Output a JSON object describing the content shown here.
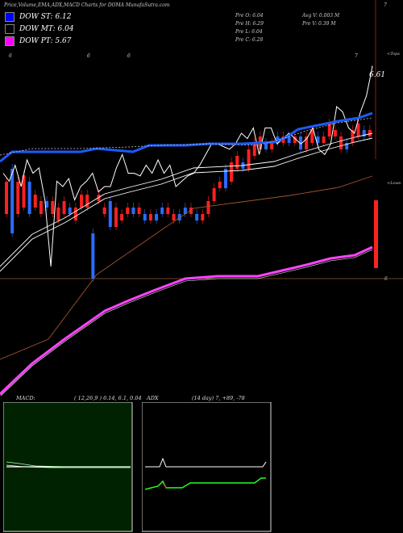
{
  "header": {
    "title": "Price,Volume,EMA,ADX,MACD Charts for DOMA MunafaSutra.com",
    "stats": [
      {
        "label": "Pre  O:",
        "value": "6.04"
      },
      {
        "label": "Pre  H:",
        "value": "6.29"
      },
      {
        "label": "Pre  L:",
        "value": "6.04"
      },
      {
        "label": "Pre  C:",
        "value": "6.28"
      }
    ],
    "avg_vol": {
      "label": "Avg V:",
      "value": "0.003 M"
    },
    "pre_vol": {
      "label": "Pre  V:",
      "value": "0.39 M"
    }
  },
  "legend": [
    {
      "label": "DOW ST:",
      "value": "6.12",
      "color": "#0000ff"
    },
    {
      "label": "DOW MT:",
      "value": "6.04",
      "color": "#000000"
    },
    {
      "label": "DOW PT:",
      "value": "5.67",
      "color": "#ff00ff"
    }
  ],
  "right_labels": {
    "top": "7",
    "tops": "<Tops",
    "lows": "<Lows",
    "mid": "6",
    "value_tag": "6.61"
  },
  "top_markers": [
    "6",
    "6",
    "6",
    "7"
  ],
  "colors": {
    "st_line": "#1a5cff",
    "pt_line": "#ff44ff",
    "mt_line": "#ffffff",
    "ema_brown": "#a0522d",
    "up_candle": "#ff2020",
    "down_candle": "#2a6cff",
    "macd_bg": "#002200"
  },
  "chart_data": [
    {
      "type": "line",
      "name": "price-panel",
      "candles": [
        {
          "o": 5.95,
          "c": 6.0
        },
        {
          "o": 6.02,
          "c": 5.92
        },
        {
          "o": 5.95,
          "c": 6.0
        },
        {
          "o": 5.96,
          "c": 6.01
        },
        {
          "o": 6.0,
          "c": 5.95
        },
        {
          "o": 5.96,
          "c": 5.98
        },
        {
          "o": 5.95,
          "c": 5.97
        },
        {
          "o": 5.97,
          "c": 5.96
        },
        {
          "o": 5.95,
          "c": 5.97
        },
        {
          "o": 5.94,
          "c": 5.96
        },
        {
          "o": 5.95,
          "c": 5.97
        },
        {
          "o": 5.96,
          "c": 5.95
        },
        {
          "o": 5.94,
          "c": 5.96
        },
        {
          "o": 5.96,
          "c": 5.98
        },
        {
          "o": 5.96,
          "c": 5.98
        },
        {
          "o": 5.92,
          "c": 5.85
        },
        {
          "o": 5.97,
          "c": 5.98
        },
        {
          "o": 5.95,
          "c": 5.96
        },
        {
          "o": 5.97,
          "c": 5.93
        },
        {
          "o": 5.93,
          "c": 5.96
        },
        {
          "o": 5.94,
          "c": 5.95
        },
        {
          "o": 5.95,
          "c": 5.96
        },
        {
          "o": 5.96,
          "c": 5.95
        },
        {
          "o": 5.95,
          "c": 5.96
        },
        {
          "o": 5.95,
          "c": 5.94
        },
        {
          "o": 5.94,
          "c": 5.95
        },
        {
          "o": 5.95,
          "c": 5.94
        },
        {
          "o": 5.96,
          "c": 5.95
        },
        {
          "o": 5.95,
          "c": 5.96
        },
        {
          "o": 5.94,
          "c": 5.95
        },
        {
          "o": 5.95,
          "c": 5.94
        },
        {
          "o": 5.96,
          "c": 5.95
        },
        {
          "o": 5.95,
          "c": 5.96
        },
        {
          "o": 5.95,
          "c": 5.94
        },
        {
          "o": 5.94,
          "c": 5.95
        },
        {
          "o": 5.95,
          "c": 5.97
        },
        {
          "o": 5.97,
          "c": 5.99
        },
        {
          "o": 5.99,
          "c": 6.0
        },
        {
          "o": 6.02,
          "c": 5.99
        },
        {
          "o": 6.0,
          "c": 6.03
        },
        {
          "o": 6.02,
          "c": 6.04
        },
        {
          "o": 6.03,
          "c": 6.02
        },
        {
          "o": 6.02,
          "c": 6.05
        },
        {
          "o": 6.04,
          "c": 6.06
        },
        {
          "o": 6.05,
          "c": 6.07
        },
        {
          "o": 6.06,
          "c": 6.05
        },
        {
          "o": 6.05,
          "c": 6.06
        },
        {
          "o": 6.07,
          "c": 6.06
        },
        {
          "o": 6.06,
          "c": 6.07
        },
        {
          "o": 6.07,
          "c": 6.06
        },
        {
          "o": 6.06,
          "c": 6.07
        },
        {
          "o": 6.07,
          "c": 6.05
        },
        {
          "o": 6.05,
          "c": 6.07
        },
        {
          "o": 6.06,
          "c": 6.08
        },
        {
          "o": 6.07,
          "c": 6.06
        },
        {
          "o": 6.06,
          "c": 6.07
        },
        {
          "o": 6.07,
          "c": 6.09
        },
        {
          "o": 6.07,
          "c": 6.08
        },
        {
          "o": 6.05,
          "c": 6.07
        },
        {
          "o": 6.06,
          "c": 6.05
        },
        {
          "o": 6.06,
          "c": 6.08
        },
        {
          "o": 6.07,
          "c": 6.09
        },
        {
          "o": 6.08,
          "c": 6.07
        },
        {
          "o": 6.07,
          "c": 6.08
        },
        {
          "o": 6.04,
          "c": 6.28
        }
      ],
      "price_line": [
        6.55,
        6.52,
        6.58,
        6.5,
        6.6,
        6.55,
        6.57,
        6.45,
        6.2,
        6.52,
        6.5,
        6.53,
        6.45,
        6.5,
        6.52,
        6.55,
        6.48,
        6.5,
        6.5,
        6.57,
        6.62,
        6.55,
        6.55,
        6.54,
        6.58,
        6.55,
        6.6,
        6.55,
        6.58,
        6.5,
        6.52,
        6.54,
        6.55,
        6.58,
        6.62,
        6.66,
        6.66,
        6.65,
        6.64,
        6.66,
        6.7,
        6.68,
        6.72,
        6.62,
        6.72,
        6.72,
        6.66,
        6.68,
        6.7,
        6.68,
        6.66,
        6.68,
        6.72,
        6.64,
        6.62,
        6.66,
        6.8,
        6.78,
        6.72,
        6.7,
        6.78,
        6.84,
        6.95
      ]
    },
    {
      "type": "line",
      "name": "MACD",
      "title": "MACD:",
      "params": "( 12,26,9 ) 6.14,  6.1,  0.04"
    },
    {
      "type": "line",
      "name": "ADX",
      "title": "ADX",
      "params": "(14  day) 7,  +89,  -78"
    }
  ]
}
